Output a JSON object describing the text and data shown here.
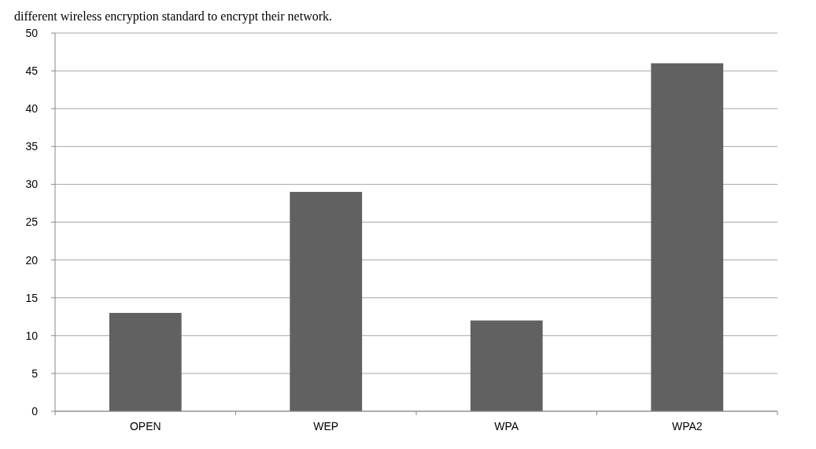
{
  "chart_data": {
    "type": "bar",
    "title": "different wireless encryption standard to encrypt their network.",
    "categories": [
      "OPEN",
      "WEP",
      "WPA",
      "WPA2"
    ],
    "values": [
      13,
      29,
      12,
      46
    ],
    "color": "#616161",
    "ylim": [
      0,
      50
    ],
    "yticks": [
      0,
      5,
      10,
      15,
      20,
      25,
      30,
      35,
      40,
      45,
      50
    ],
    "grid": "y"
  }
}
